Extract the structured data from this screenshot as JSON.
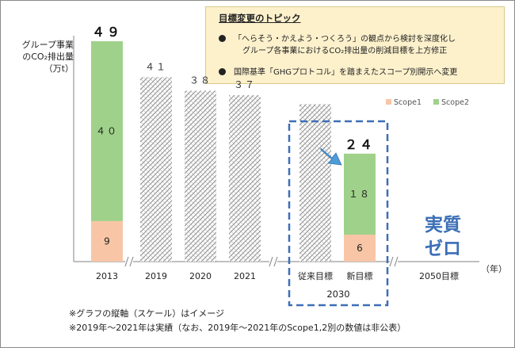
{
  "topic_box": {
    "title": "目標変更のトピック",
    "bullet1_line1": "「へらそう・かえよう・つくろう」の観点から検討を深度化し",
    "bullet1_line2": "グループ各事業におけるCO₂排出量の削減目標を上方修正",
    "bullet2": "国際基準「GHGプロトコル」を踏まえたスコープ別開示へ変更"
  },
  "y_axis_label": [
    "グループ事業",
    "のCO₂排出量",
    "（万t）"
  ],
  "footnotes": [
    "※グラフの縦軸（スケール）はイメージ",
    "※2019年～2021年は実績（なお、2019年～2021年のScope1,2別の数値は非公表）"
  ],
  "zero_label": [
    "実質",
    "ゼロ"
  ],
  "year_unit": "（年）",
  "group_2030_label": "2030",
  "label_2050": "2050目標",
  "colors": {
    "scope1": "#f8c6a6",
    "scope2": "#9fd18a",
    "accent_blue": "#3c6fb6",
    "arrow": "#4f9bd6"
  },
  "chart_data": {
    "type": "bar",
    "title": "",
    "ylabel": "グループ事業のCO₂排出量（万t）",
    "xlabel": "（年）",
    "ylim": [
      0,
      52
    ],
    "legend": [
      "Scope1",
      "Scope2"
    ],
    "categories": [
      "2013",
      "2019",
      "2020",
      "2021",
      "従来目標",
      "新目標"
    ],
    "series": [
      {
        "name": "Scope1",
        "values": [
          9,
          null,
          null,
          null,
          null,
          6
        ]
      },
      {
        "name": "Scope2",
        "values": [
          40,
          null,
          null,
          null,
          null,
          18
        ]
      }
    ],
    "totals": [
      49,
      41,
      38,
      37,
      null,
      24
    ],
    "total_labels": [
      "４９",
      "４１",
      "３８",
      "３７",
      "",
      "２４"
    ],
    "segment_labels": {
      "scope1": [
        "9",
        "",
        "",
        "",
        "",
        "6"
      ],
      "scope2": [
        "４０",
        "",
        "",
        "",
        "",
        "１８"
      ]
    },
    "hatched_values": [
      null,
      41,
      38,
      37,
      35,
      null
    ],
    "legend_position": "top-right"
  }
}
